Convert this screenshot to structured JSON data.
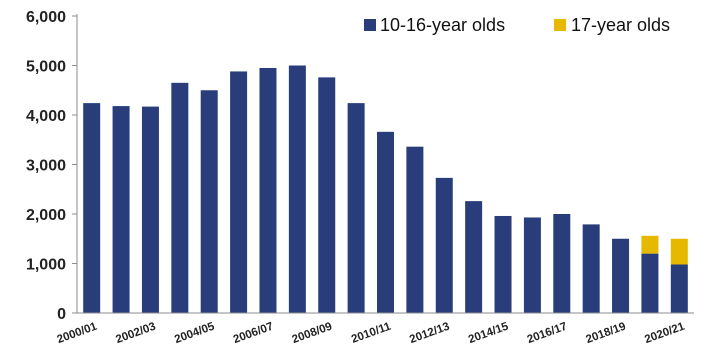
{
  "chart_data": {
    "type": "bar",
    "stacked": true,
    "title": "",
    "xlabel": "",
    "ylabel": "",
    "ylim": [
      0,
      6000
    ],
    "y_ticks": [
      "0",
      "1,000",
      "2,000",
      "3,000",
      "4,000",
      "5,000",
      "6,000"
    ],
    "y_tick_values": [
      0,
      1000,
      2000,
      3000,
      4000,
      5000,
      6000
    ],
    "grid": false,
    "legend_position": "top-right",
    "categories": [
      "2000/01",
      "2001/02",
      "2002/03",
      "2003/04",
      "2004/05",
      "2005/06",
      "2006/07",
      "2007/08",
      "2008/09",
      "2009/10",
      "2010/11",
      "2011/12",
      "2012/13",
      "2013/14",
      "2014/15",
      "2015/16",
      "2016/17",
      "2017/18",
      "2018/19",
      "2019/20",
      "2020/21"
    ],
    "x_tick_labels": [
      "2000/01",
      "",
      "2002/03",
      "",
      "2004/05",
      "",
      "2006/07",
      "",
      "2008/09",
      "",
      "2010/11",
      "",
      "2012/13",
      "",
      "2014/15",
      "",
      "2016/17",
      "",
      "2018/19",
      "",
      "2020/21"
    ],
    "series": [
      {
        "name": "10-16-year olds",
        "color": "#283d7a",
        "values": [
          4240,
          4180,
          4170,
          4650,
          4500,
          4880,
          4950,
          5000,
          4760,
          4240,
          3660,
          3360,
          2730,
          2260,
          1960,
          1930,
          2000,
          1790,
          1500,
          1200,
          980
        ]
      },
      {
        "name": "17-year olds",
        "color": "#e6b800",
        "values": [
          0,
          0,
          0,
          0,
          0,
          0,
          0,
          0,
          0,
          0,
          0,
          0,
          0,
          0,
          0,
          0,
          0,
          0,
          0,
          360,
          520
        ]
      }
    ]
  }
}
